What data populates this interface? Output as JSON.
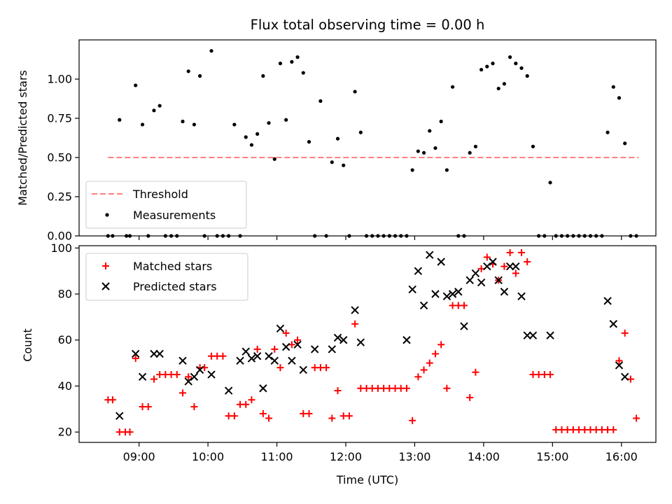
{
  "figure_title": "Flux total observing time = 0.00 h",
  "colors": {
    "threshold": "#ff7f7f",
    "measurement": "#000000",
    "matched": "#ff0000",
    "predicted": "#000000"
  },
  "chart_data": [
    {
      "type": "scatter",
      "panel": "top",
      "title": "Flux total observing time = 0.00 h",
      "xlabel": "",
      "ylabel": "Matched/Predicted stars",
      "ylim": [
        0,
        1.25
      ],
      "xlim_hours": [
        8.13,
        16.5
      ],
      "yticks": [
        "0.00",
        "0.25",
        "0.50",
        "0.75",
        "1.00"
      ],
      "ytick_values": [
        0,
        0.25,
        0.5,
        0.75,
        1.0
      ],
      "grid": false,
      "legend_position": "lower-left",
      "legend": [
        "Threshold",
        "Measurements"
      ],
      "threshold": {
        "name": "Threshold",
        "y": 0.5,
        "x_start": "08:33",
        "x_end": "16:15",
        "style": "dashed"
      },
      "measurements": {
        "name": "Measurements",
        "x": [
          "08:33",
          "08:37",
          "08:43",
          "08:49",
          "08:52",
          "08:57",
          "09:03",
          "09:08",
          "09:13",
          "09:18",
          "09:23",
          "09:28",
          "09:33",
          "09:38",
          "09:43",
          "09:48",
          "09:53",
          "09:57",
          "10:03",
          "10:08",
          "10:13",
          "10:18",
          "10:23",
          "10:28",
          "10:33",
          "10:38",
          "10:43",
          "10:48",
          "10:53",
          "10:58",
          "11:03",
          "11:08",
          "11:13",
          "11:18",
          "11:23",
          "11:28",
          "11:33",
          "11:38",
          "11:43",
          "11:48",
          "11:53",
          "11:58",
          "12:03",
          "12:08",
          "12:13",
          "12:18",
          "12:23",
          "12:28",
          "12:33",
          "12:38",
          "12:43",
          "12:48",
          "12:53",
          "12:58",
          "13:03",
          "13:08",
          "13:13",
          "13:18",
          "13:23",
          "13:28",
          "13:33",
          "13:38",
          "13:43",
          "13:48",
          "13:53",
          "13:58",
          "14:03",
          "14:08",
          "14:13",
          "14:18",
          "14:23",
          "14:28",
          "14:33",
          "14:38",
          "14:43",
          "14:48",
          "14:53",
          "14:58",
          "15:03",
          "15:08",
          "15:13",
          "15:18",
          "15:23",
          "15:28",
          "15:33",
          "15:38",
          "15:43",
          "15:48",
          "15:53",
          "15:58",
          "16:03",
          "16:08",
          "16:13"
        ],
        "y": [
          0.0,
          0.0,
          0.74,
          0.0,
          0.0,
          0.96,
          0.71,
          0.0,
          0.8,
          0.83,
          0.0,
          0.0,
          0.0,
          0.73,
          1.05,
          0.71,
          1.02,
          0.0,
          1.18,
          0.0,
          0.0,
          0.0,
          0.71,
          0.0,
          0.63,
          0.58,
          0.65,
          1.02,
          0.72,
          0.49,
          1.1,
          0.74,
          1.11,
          1.14,
          1.04,
          0.6,
          0.0,
          0.86,
          0.0,
          0.47,
          0.62,
          0.45,
          0.0,
          0.92,
          0.66,
          0.0,
          0.0,
          0.0,
          0.0,
          0.0,
          0.0,
          0.0,
          0.0,
          0.42,
          0.54,
          0.53,
          0.67,
          0.56,
          0.73,
          0.42,
          0.95,
          0.0,
          0.0,
          0.53,
          0.57,
          1.06,
          1.08,
          1.1,
          0.94,
          0.97,
          1.14,
          1.1,
          1.07,
          1.02,
          0.57,
          0.0,
          0.0,
          0.34,
          0.0,
          0.0,
          0.0,
          0.0,
          0.0,
          0.0,
          0.0,
          0.0,
          0.0,
          0.66,
          0.95,
          0.88,
          0.59,
          0.0,
          0.0
        ]
      }
    },
    {
      "type": "scatter",
      "panel": "bottom",
      "title": "",
      "xlabel": "Time (UTC)",
      "ylabel": "Count",
      "ylim": [
        15.5,
        101
      ],
      "xlim_hours": [
        8.13,
        16.5
      ],
      "xticks": [
        "09:00",
        "10:00",
        "11:00",
        "12:00",
        "13:00",
        "14:00",
        "15:00",
        "16:00"
      ],
      "yticks": [
        "20",
        "40",
        "60",
        "80",
        "100"
      ],
      "ytick_values": [
        20,
        40,
        60,
        80,
        100
      ],
      "grid": false,
      "legend_position": "upper-left",
      "legend": [
        "Matched stars",
        "Predicted stars"
      ],
      "series": [
        {
          "name": "Matched stars",
          "marker": "plus",
          "x": [
            "08:33",
            "08:37",
            "08:43",
            "08:48",
            "08:52",
            "08:57",
            "09:03",
            "09:08",
            "09:13",
            "09:18",
            "09:23",
            "09:28",
            "09:33",
            "09:38",
            "09:43",
            "09:48",
            "09:53",
            "09:57",
            "10:03",
            "10:08",
            "10:13",
            "10:18",
            "10:23",
            "10:28",
            "10:33",
            "10:38",
            "10:43",
            "10:48",
            "10:53",
            "10:58",
            "11:03",
            "11:08",
            "11:13",
            "11:18",
            "11:23",
            "11:28",
            "11:33",
            "11:38",
            "11:43",
            "11:48",
            "11:53",
            "11:58",
            "12:03",
            "12:08",
            "12:13",
            "12:18",
            "12:23",
            "12:28",
            "12:33",
            "12:38",
            "12:43",
            "12:48",
            "12:53",
            "12:58",
            "13:03",
            "13:08",
            "13:13",
            "13:18",
            "13:23",
            "13:28",
            "13:33",
            "13:38",
            "13:43",
            "13:48",
            "13:53",
            "13:58",
            "14:03",
            "14:08",
            "14:13",
            "14:18",
            "14:23",
            "14:28",
            "14:33",
            "14:38",
            "14:43",
            "14:48",
            "14:53",
            "14:58",
            "15:03",
            "15:08",
            "15:13",
            "15:18",
            "15:23",
            "15:28",
            "15:33",
            "15:38",
            "15:43",
            "15:48",
            "15:53",
            "15:58",
            "16:03",
            "16:08",
            "16:13"
          ],
          "y": [
            34,
            34,
            20,
            20,
            20,
            52,
            31,
            31,
            43,
            45,
            45,
            45,
            45,
            37,
            44,
            31,
            48,
            48,
            53,
            53,
            53,
            27,
            27,
            32,
            32,
            34,
            56,
            28,
            26,
            56,
            48,
            63,
            58,
            60,
            28,
            28,
            48,
            48,
            48,
            26,
            38,
            27,
            27,
            67,
            39,
            39,
            39,
            39,
            39,
            39,
            39,
            39,
            39,
            25,
            44,
            47,
            50,
            54,
            58,
            39,
            75,
            75,
            75,
            35,
            46,
            91,
            96,
            93,
            86,
            92,
            98,
            89,
            98,
            94,
            45,
            45,
            45,
            45,
            21,
            21,
            21,
            21,
            21,
            21,
            21,
            21,
            21,
            21,
            21,
            51,
            63,
            43,
            26
          ]
        },
        {
          "name": "Predicted stars",
          "marker": "x",
          "x": [
            "08:43",
            "08:57",
            "09:03",
            "09:13",
            "09:18",
            "09:38",
            "09:43",
            "09:48",
            "09:53",
            "10:03",
            "10:18",
            "10:28",
            "10:33",
            "10:38",
            "10:43",
            "10:48",
            "10:53",
            "10:58",
            "11:03",
            "11:08",
            "11:13",
            "11:18",
            "11:23",
            "11:33",
            "11:48",
            "11:53",
            "11:58",
            "12:08",
            "12:13",
            "12:53",
            "12:58",
            "13:03",
            "13:08",
            "13:13",
            "13:18",
            "13:23",
            "13:28",
            "13:33",
            "13:38",
            "13:43",
            "13:48",
            "13:53",
            "13:58",
            "14:03",
            "14:08",
            "14:13",
            "14:18",
            "14:23",
            "14:28",
            "14:33",
            "14:38",
            "14:43",
            "14:58",
            "15:48",
            "15:53",
            "15:58",
            "16:03"
          ],
          "y": [
            27,
            54,
            44,
            54,
            54,
            51,
            42,
            44,
            47,
            45,
            38,
            51,
            55,
            52,
            53,
            39,
            53,
            51,
            65,
            57,
            51,
            58,
            47,
            56,
            56,
            61,
            60,
            73,
            59,
            60,
            82,
            90,
            75,
            97,
            80,
            94,
            79,
            80,
            81,
            66,
            86,
            89,
            85,
            92,
            94,
            86,
            81,
            92,
            92,
            79,
            62,
            62,
            62,
            77,
            67,
            49,
            44
          ]
        }
      ]
    }
  ]
}
